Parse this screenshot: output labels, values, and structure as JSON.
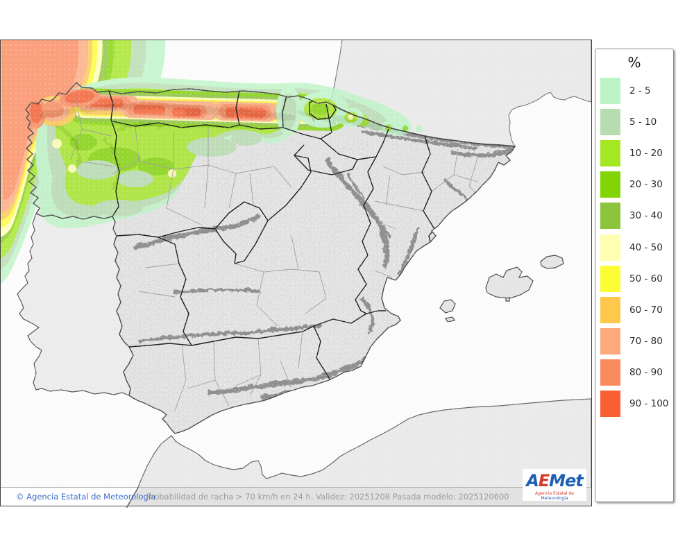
{
  "legend": {
    "title": "%",
    "items": [
      {
        "label": "2 - 5",
        "color": "#bdf4c6"
      },
      {
        "label": "5 - 10",
        "color": "#b7dcb0"
      },
      {
        "label": "10 - 20",
        "color": "#a4e723"
      },
      {
        "label": "20 - 30",
        "color": "#82d404"
      },
      {
        "label": "30 - 40",
        "color": "#8cc43e"
      },
      {
        "label": "40 - 50",
        "color": "#ffffb2"
      },
      {
        "label": "50 - 60",
        "color": "#fdfd35"
      },
      {
        "label": "60 - 70",
        "color": "#fdc84b"
      },
      {
        "label": "70 - 80",
        "color": "#fda97c"
      },
      {
        "label": "80 - 90",
        "color": "#fb8a5d"
      },
      {
        "label": "90 - 100",
        "color": "#f85f31"
      }
    ]
  },
  "footer": {
    "copyright": "© Agencia Estatal de Meteorología",
    "info": "Probabilidad de racha > 70 km/h en 24 h. Validez: 20251208 Pasada modelo: 2025120600"
  },
  "logo": {
    "part_a": "A",
    "part_e": "E",
    "part_met": "Met",
    "subtitle_left": "Agencia Estatal de ",
    "subtitle_right": "Meteorología",
    "blue": "#1d5fb5",
    "red": "#d43a2a"
  },
  "map_colors": {
    "sea": "#fbfbfb",
    "foreign_land": "#eaeaea",
    "spain_land": "#e7e7e7",
    "border_dark": "#1f1f1f",
    "border_province": "#9f9f9f",
    "coast": "#555555"
  }
}
